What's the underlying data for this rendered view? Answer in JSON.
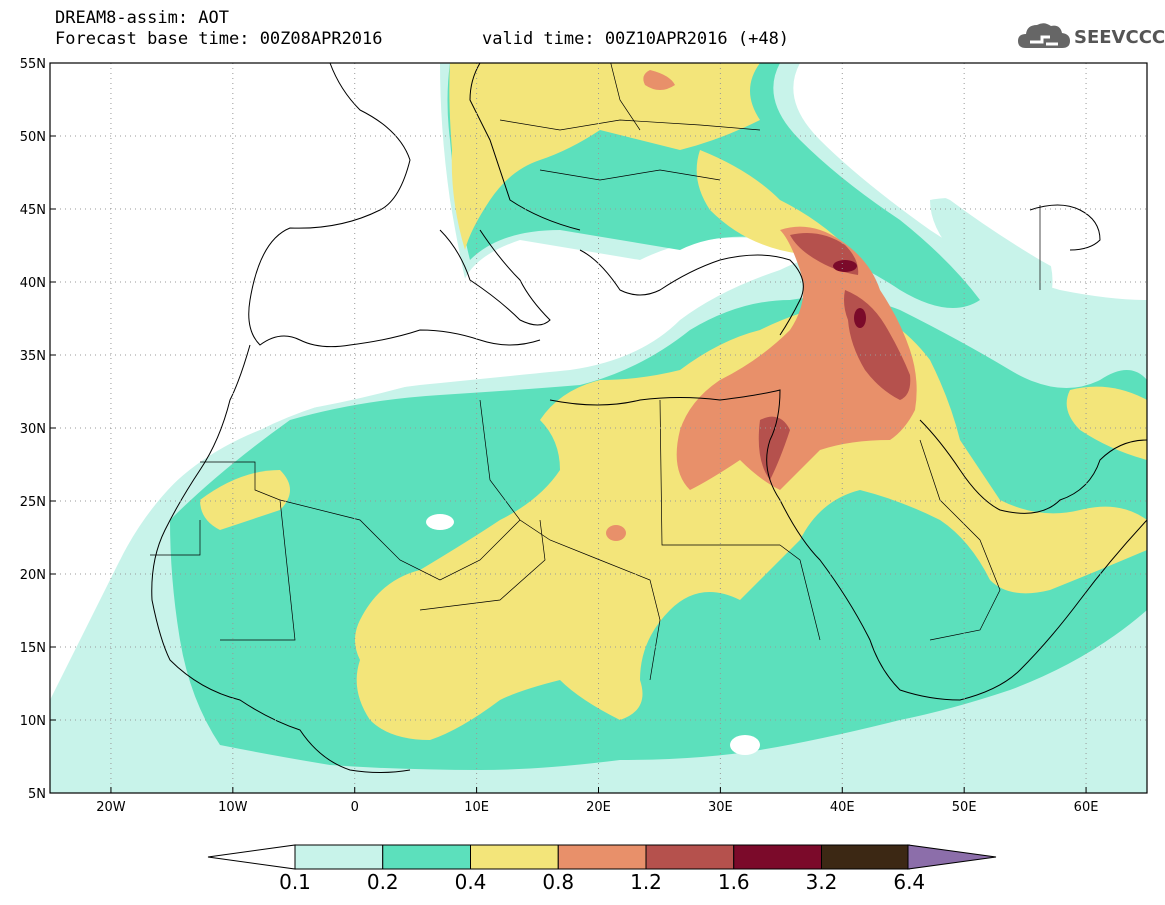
{
  "header": {
    "line1": "DREAM8-assim: AOT",
    "line2": "Forecast base time: 00Z08APR2016",
    "valid": "valid time: 00Z10APR2016 (+48)"
  },
  "logo": {
    "text": "SEEVCCC",
    "icon": "cloud-icon"
  },
  "map": {
    "lon_range": [
      -25,
      65
    ],
    "lat_range": [
      5,
      55
    ],
    "grid": "dotted",
    "lat_ticks": [
      "5N",
      "10N",
      "15N",
      "20N",
      "25N",
      "30N",
      "35N",
      "40N",
      "45N",
      "50N",
      "55N"
    ],
    "lon_ticks": [
      "20W",
      "10W",
      "0",
      "10E",
      "20E",
      "30E",
      "40E",
      "50E",
      "60E"
    ]
  },
  "legend": {
    "labels": [
      "0.1",
      "0.2",
      "0.4",
      "0.8",
      "1.2",
      "1.6",
      "3.2",
      "6.4"
    ],
    "colors": [
      "#c8f3ea",
      "#5ce0bc",
      "#f3e57a",
      "#e8906a",
      "#b5514d",
      "#7b0a2a",
      "#3c2814",
      "#8c6eaa"
    ],
    "arrow_left_color": "#ffffff",
    "arrow_right_color": "#8c6eaa"
  },
  "colors": {
    "c01": "#c8f3ea",
    "c02": "#5ce0bc",
    "c04": "#f3e57a",
    "c08": "#e8906a",
    "c12": "#b5514d",
    "c16": "#7b0a2a"
  }
}
